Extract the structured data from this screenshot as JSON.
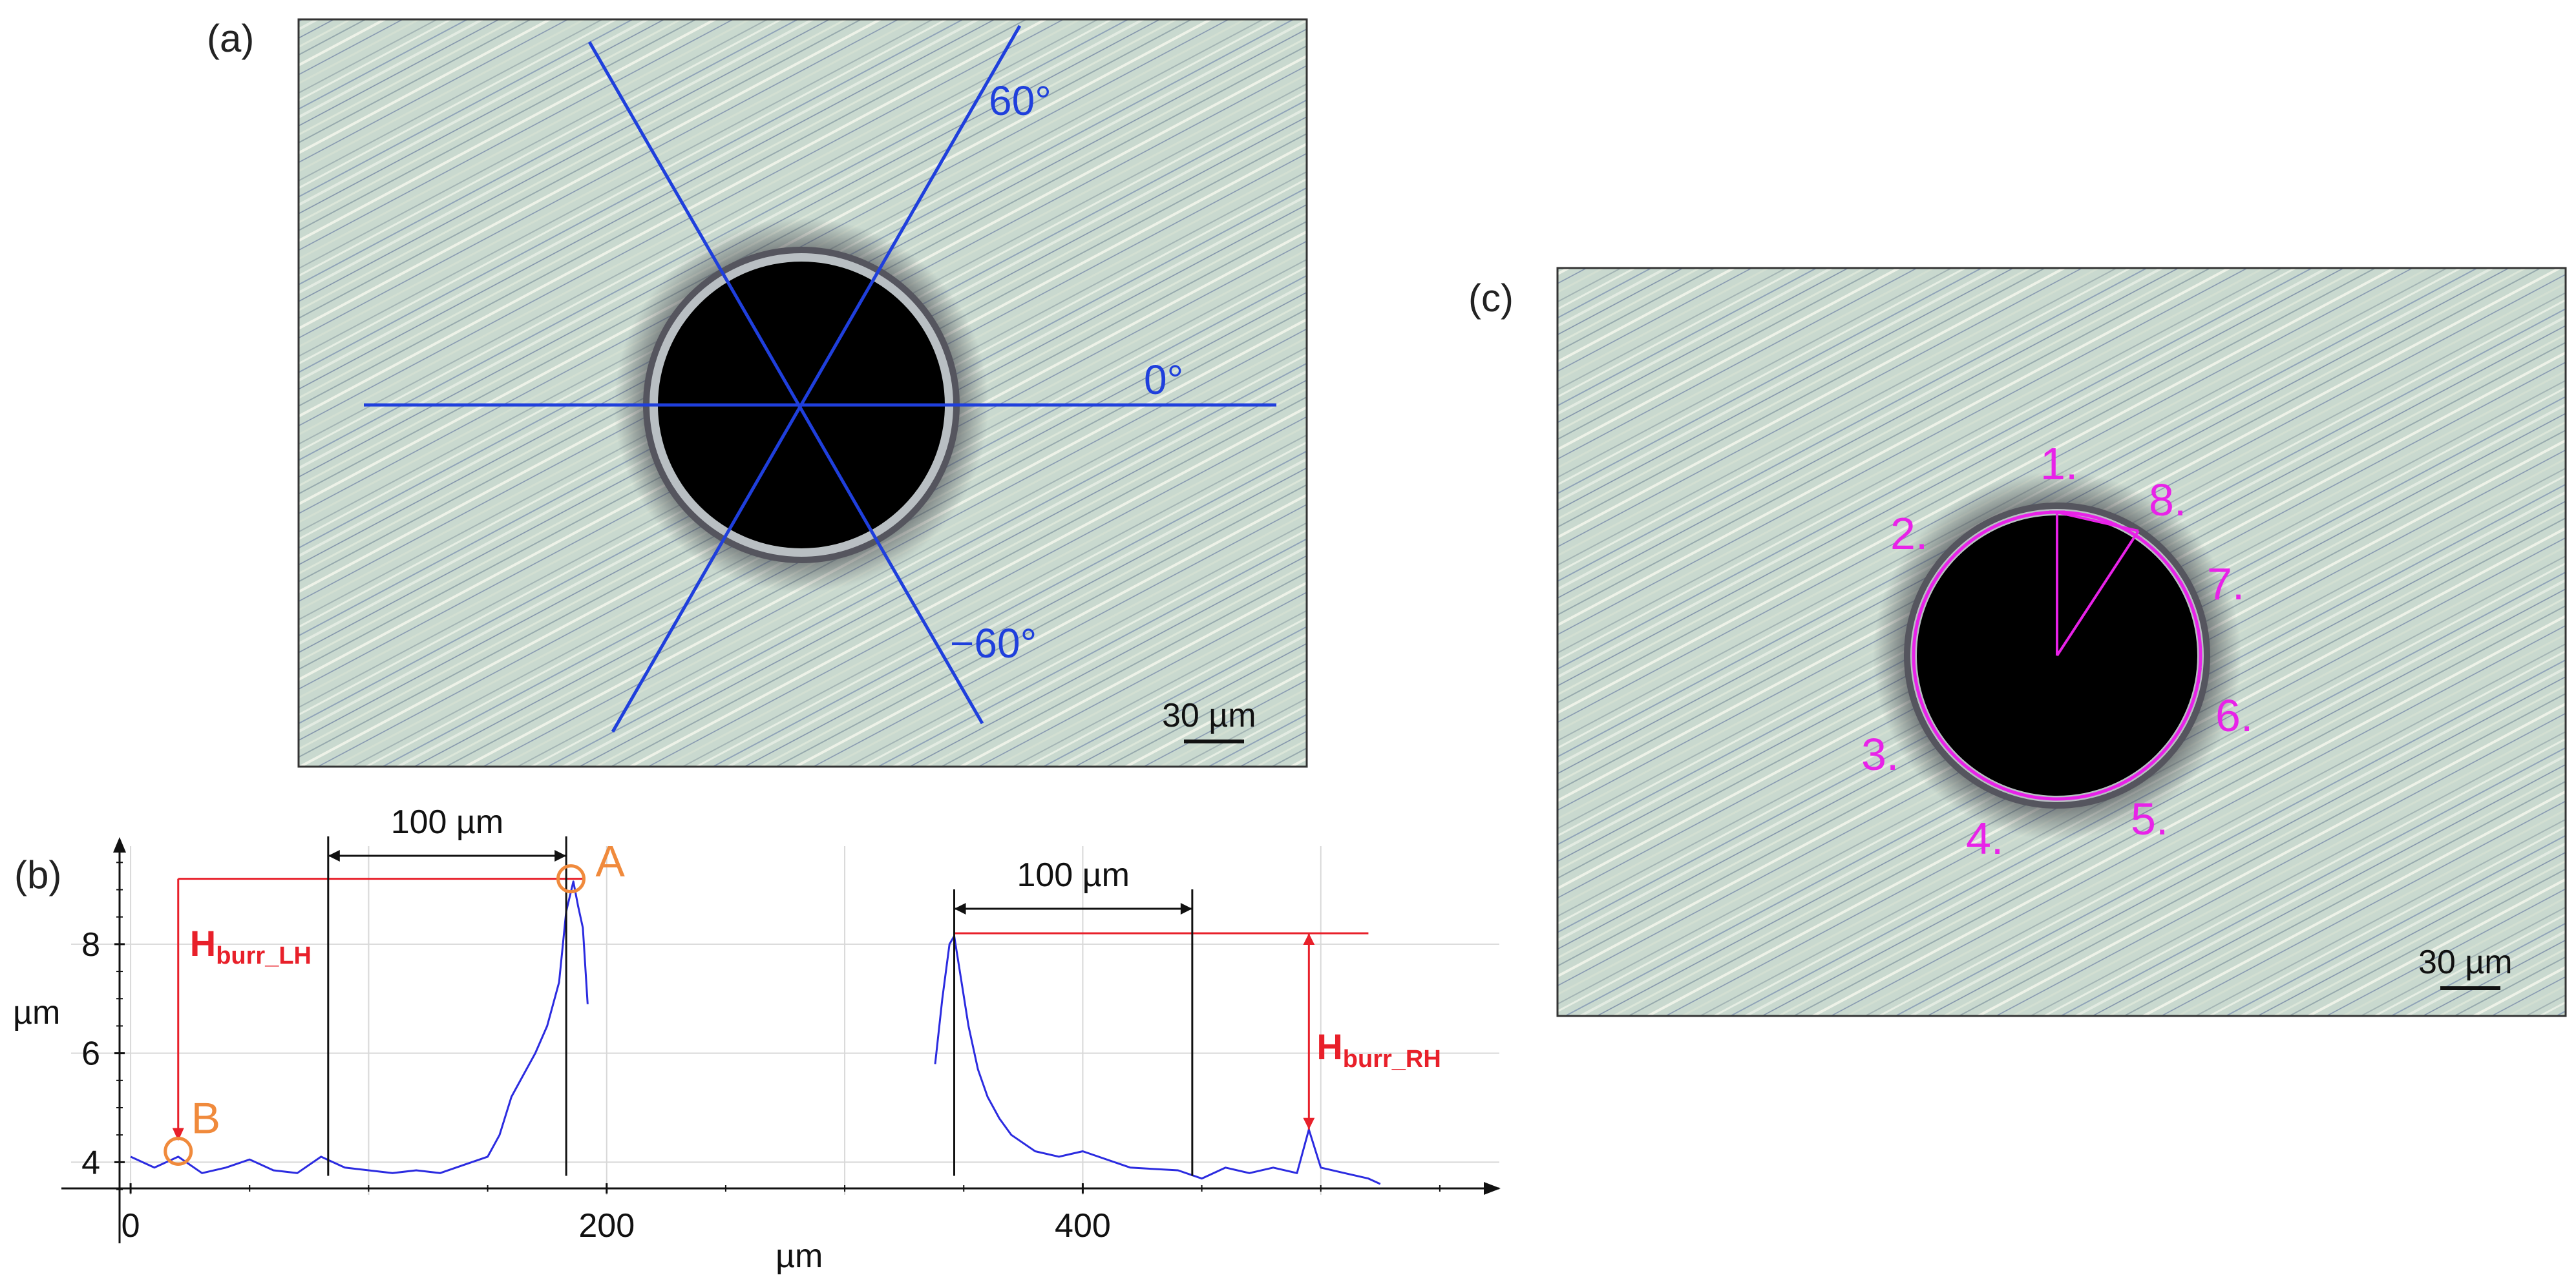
{
  "panel_a": {
    "label": "(a)",
    "angle_labels": [
      "60°",
      "0°",
      "−60°"
    ],
    "scale_bar": "30 µm",
    "line_color": "#1f3fdc"
  },
  "panel_b": {
    "label": "(b)",
    "ylabel": "µm",
    "xlabel": "µm",
    "left_dimension": "100 µm",
    "right_dimension": "100 µm",
    "point_a": "A",
    "point_b": "B",
    "h_lh_main": "H",
    "h_lh_sub": "burr_LH",
    "h_rh_main": "H",
    "h_rh_sub": "burr_RH",
    "annotation_color": "#e8202a",
    "point_color": "#f08a3c",
    "profile_color": "#2b2be0"
  },
  "panel_c": {
    "label": "(c)",
    "points": [
      "1.",
      "2.",
      "3.",
      "4.",
      "5.",
      "6.",
      "7.",
      "8."
    ],
    "scale_bar": "30 µm",
    "mark_color": "#e822e8"
  },
  "chart_data": {
    "type": "line",
    "title": "",
    "xlabel": "µm",
    "ylabel": "µm",
    "xlim": [
      -25,
      575
    ],
    "ylim": [
      3.4,
      9.8
    ],
    "xticks": [
      0,
      200,
      400
    ],
    "yticks": [
      4,
      6,
      8
    ],
    "grid": true,
    "series": [
      {
        "name": "left profile",
        "x": [
          0,
          10,
          20,
          30,
          40,
          50,
          60,
          70,
          80,
          90,
          100,
          110,
          120,
          130,
          140,
          150,
          155,
          160,
          165,
          170,
          175,
          180,
          183,
          186,
          188,
          190,
          192
        ],
        "values": [
          4.1,
          3.9,
          4.1,
          3.8,
          3.9,
          4.05,
          3.85,
          3.8,
          4.1,
          3.9,
          3.85,
          3.8,
          3.85,
          3.8,
          3.95,
          4.1,
          4.5,
          5.2,
          5.6,
          6.0,
          6.5,
          7.3,
          8.6,
          9.15,
          8.7,
          8.3,
          6.9
        ]
      },
      {
        "name": "right profile",
        "x": [
          338,
          341,
          344,
          346,
          348,
          352,
          356,
          360,
          365,
          370,
          380,
          390,
          400,
          420,
          440,
          450,
          460,
          470,
          480,
          490,
          495,
          500,
          510,
          520,
          525
        ],
        "values": [
          5.8,
          7.0,
          8.0,
          8.15,
          7.6,
          6.5,
          5.7,
          5.2,
          4.8,
          4.5,
          4.2,
          4.1,
          4.2,
          3.9,
          3.85,
          3.7,
          3.9,
          3.8,
          3.9,
          3.8,
          4.6,
          3.9,
          3.8,
          3.7,
          3.6
        ]
      }
    ],
    "annotations": [
      {
        "label": "A",
        "x": 185,
        "y": 9.2
      },
      {
        "label": "B",
        "x": 20,
        "y": 4.2
      },
      {
        "label": "H_burr_LH",
        "from": [
          20,
          4.2
        ],
        "to": [
          20,
          9.2
        ]
      },
      {
        "label": "H_burr_RH",
        "from": [
          495,
          4.6
        ],
        "to": [
          495,
          8.2
        ]
      },
      {
        "label": "100 µm",
        "from": [
          83,
          9.2
        ],
        "to": [
          183,
          9.2
        ]
      },
      {
        "label": "100 µm",
        "from": [
          346,
          8.2
        ],
        "to": [
          446,
          8.2
        ]
      }
    ]
  }
}
